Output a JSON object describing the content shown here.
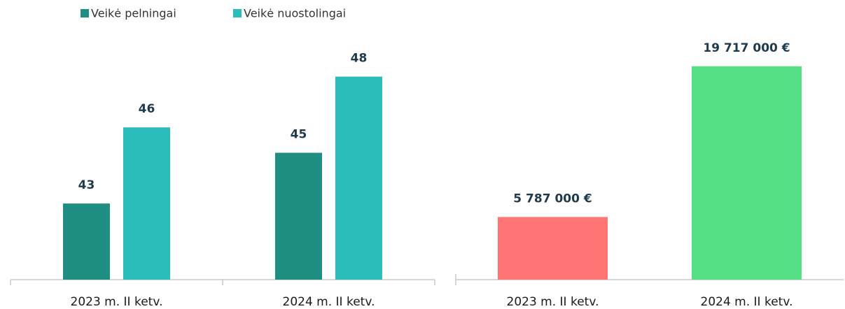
{
  "chart_data": [
    {
      "type": "bar",
      "categories": [
        "2023 m. II ketv.",
        "2024 m. II ketv."
      ],
      "series": [
        {
          "name": "Veikė pelningai",
          "color": "#1f8f84",
          "values": [
            43,
            45
          ]
        },
        {
          "name": "Veikė nuostolingai",
          "color": "#2bbcbc",
          "values": [
            46,
            48
          ]
        }
      ],
      "ylim": [
        40,
        50
      ],
      "legend": "top-left",
      "grid": false
    },
    {
      "type": "bar",
      "categories": [
        "2023 m. II ketv.",
        "2024 m. II ketv."
      ],
      "values": [
        5787000,
        19717000
      ],
      "value_labels": [
        "5 787 000 €",
        "19 717 000 €"
      ],
      "colors": [
        "#ff7474",
        "#55e086"
      ],
      "ylim": [
        0,
        25000000
      ],
      "grid": false
    }
  ]
}
